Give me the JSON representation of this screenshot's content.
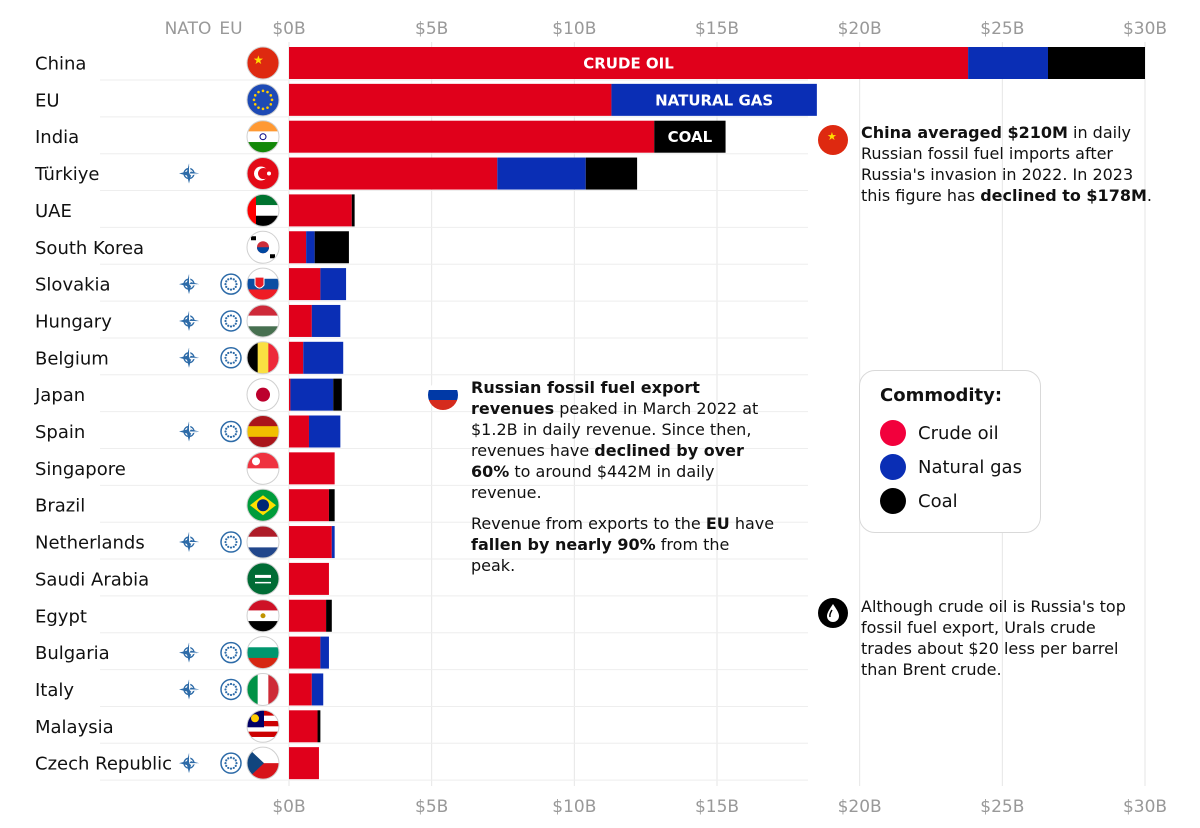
{
  "chart_data": {
    "type": "bar",
    "stacked": true,
    "orientation": "horizontal",
    "title": "",
    "xlabel": "",
    "ylabel": "",
    "xlim": [
      0,
      30
    ],
    "grid": true,
    "ticks": [
      "$0B",
      "$5B",
      "$10B",
      "$15B",
      "$20B",
      "$25B",
      "$30B"
    ],
    "column_headers": {
      "nato": "NATO",
      "eu": "EU"
    },
    "categories": [
      "China",
      "EU",
      "India",
      "Türkiye",
      "UAE",
      "South Korea",
      "Slovakia",
      "Hungary",
      "Belgium",
      "Japan",
      "Spain",
      "Singapore",
      "Brazil",
      "Netherlands",
      "Saudi Arabia",
      "Egypt",
      "Bulgaria",
      "Italy",
      "Malaysia",
      "Czech Republic"
    ],
    "nato_member": [
      false,
      false,
      false,
      true,
      false,
      false,
      true,
      true,
      true,
      false,
      true,
      false,
      false,
      true,
      false,
      false,
      true,
      true,
      false,
      true
    ],
    "eu_member": [
      false,
      false,
      false,
      false,
      false,
      false,
      true,
      true,
      true,
      false,
      true,
      false,
      false,
      true,
      false,
      false,
      true,
      true,
      false,
      true
    ],
    "series": [
      {
        "name": "Crude oil",
        "color": "#e0001b",
        "values": [
          23.8,
          11.3,
          12.8,
          7.3,
          2.2,
          0.6,
          1.1,
          0.8,
          0.5,
          0.05,
          0.7,
          1.6,
          1.4,
          1.5,
          1.4,
          1.3,
          1.1,
          0.8,
          1.0,
          1.05
        ]
      },
      {
        "name": "Natural gas",
        "color": "#0a2eb5",
        "values": [
          2.8,
          7.2,
          0.0,
          3.1,
          0.0,
          0.3,
          0.9,
          1.0,
          1.4,
          1.5,
          1.1,
          0.0,
          0.0,
          0.1,
          0.0,
          0.0,
          0.3,
          0.4,
          0.0,
          0.0
        ]
      },
      {
        "name": "Coal",
        "color": "#000000",
        "values": [
          3.4,
          0.0,
          2.5,
          1.8,
          0.1,
          1.2,
          0.0,
          0.0,
          0.0,
          0.3,
          0.0,
          0.0,
          0.2,
          0.0,
          0.0,
          0.2,
          0.0,
          0.0,
          0.1,
          0.0
        ]
      }
    ],
    "bar_labels": [
      {
        "category": "China",
        "series": "Crude oil",
        "text": "CRUDE OIL"
      },
      {
        "category": "EU",
        "series": "Natural gas",
        "text": "NATURAL GAS"
      },
      {
        "category": "India",
        "series": "Coal",
        "text": "COAL"
      }
    ],
    "legend": {
      "title": "Commodity:",
      "placement": "right",
      "items": [
        "Crude oil",
        "Natural gas",
        "Coal"
      ]
    }
  },
  "annotations": {
    "china": {
      "bold1": "China averaged $210M",
      "text1": " in daily Russian fossil fuel imports after Russia's invasion in 2022. In 2023 this figure has ",
      "bold2": "declined to $178M",
      "text2": "."
    },
    "russia": {
      "bold1": "Russian fossil fuel export revenues",
      "text1": " peaked in March 2022 at $1.2B in daily revenue. Since then, revenues have ",
      "bold2": "declined by over 60%",
      "text2": " to around $442M in daily revenue.",
      "p2_text1": "Revenue from exports to the ",
      "p2_bold1": "EU",
      "p2_text2": " have ",
      "p2_bold2": "fallen by nearly 90%",
      "p2_text3": " from the peak."
    },
    "crude": {
      "text": "Although crude oil is Russia's top fossil fuel export, Urals crude trades about $20 less per barrel than Brent crude."
    }
  }
}
